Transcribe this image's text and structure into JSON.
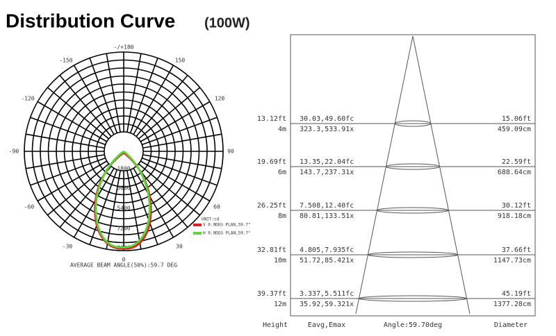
{
  "title": "Distribution Curve",
  "subtitle": "(100W)",
  "polar": {
    "angle_labels": [
      "-/+180",
      "150",
      "-150",
      "120",
      "-120",
      "90",
      "-90",
      "60",
      "-60",
      "30",
      "-30",
      "0"
    ],
    "radial_labels": [
      "1800",
      "3600",
      "5400",
      "7200",
      "9000"
    ],
    "unit": "UNIT:cd",
    "legend": [
      "V 0.0DEG PLAN,59.7°",
      "H 0.0DEG PLAN,59.7°"
    ],
    "caption": "AVERAGE BEAM ANGLE(50%):59.7 DEG"
  },
  "cone": {
    "rows": [
      {
        "height_ft": "13.12ft",
        "height_m": "4m",
        "fc": "30.03,49.60fc",
        "lx": "323.3,533.91x",
        "diam_ft": "15.06ft",
        "diam_cm": "459.09cm"
      },
      {
        "height_ft": "19.69ft",
        "height_m": "6m",
        "fc": "13.35,22.04fc",
        "lx": "143.7,237.31x",
        "diam_ft": "22.59ft",
        "diam_cm": "688.64cm"
      },
      {
        "height_ft": "26.25ft",
        "height_m": "8m",
        "fc": "7.508,12.40fc",
        "lx": "80.81,133.51x",
        "diam_ft": "30.12ft",
        "diam_cm": "918.18cm"
      },
      {
        "height_ft": "32.81ft",
        "height_m": "10m",
        "fc": "4.805,7.935fc",
        "lx": "51.72,85.421x",
        "diam_ft": "37.66ft",
        "diam_cm": "1147.73cm"
      },
      {
        "height_ft": "39.37ft",
        "height_m": "12m",
        "fc": "3.337,5.511fc",
        "lx": "35.92,59.321x",
        "diam_ft": "45.19ft",
        "diam_cm": "1377.28cm"
      }
    ],
    "footer": [
      "Height",
      "Eavg,Emax",
      "Angle:59.70deg",
      "Diameter"
    ]
  }
}
